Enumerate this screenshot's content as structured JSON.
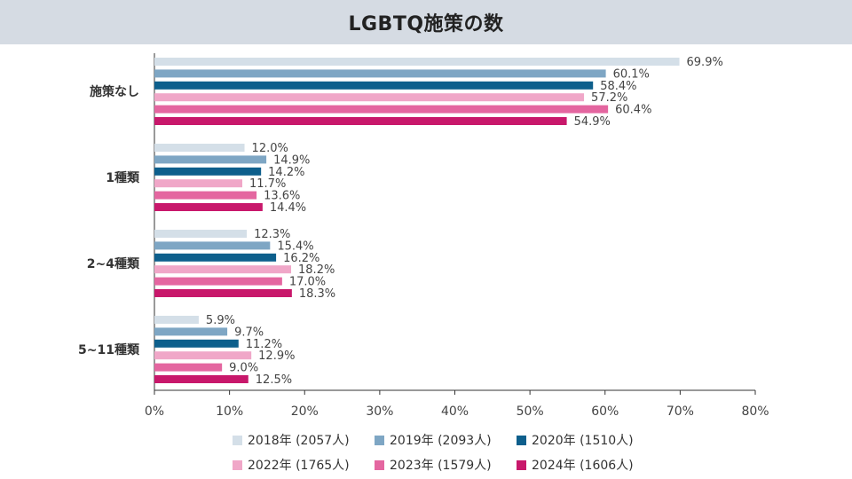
{
  "colors": {
    "2018": "#d4dfe8",
    "2019": "#7ea6c4",
    "2020": "#0d5f8c",
    "2022": "#f0a7c8",
    "2023": "#e466a0",
    "2024": "#c8186b"
  },
  "chart_data": {
    "type": "bar",
    "orientation": "horizontal",
    "title": "LGBTQ施策の数",
    "categories": [
      "施策なし",
      "1種類",
      "2~4種類",
      "5~11種類"
    ],
    "xlim": [
      0,
      80
    ],
    "xticks": [
      "0%",
      "10%",
      "20%",
      "30%",
      "40%",
      "50%",
      "60%",
      "70%",
      "80%"
    ],
    "series": [
      {
        "key": "2018",
        "name": "2018年 (2057人)",
        "values": [
          69.9,
          12.0,
          12.3,
          5.9
        ],
        "labels": [
          "69.9%",
          "12.0%",
          "12.3%",
          "5.9%"
        ]
      },
      {
        "key": "2019",
        "name": "2019年 (2093人)",
        "values": [
          60.1,
          14.9,
          15.4,
          9.7
        ],
        "labels": [
          "60.1%",
          "14.9%",
          "15.4%",
          "9.7%"
        ]
      },
      {
        "key": "2020",
        "name": "2020年 (1510人)",
        "values": [
          58.4,
          14.2,
          16.2,
          11.2
        ],
        "labels": [
          "58.4%",
          "14.2%",
          "16.2%",
          "11.2%"
        ]
      },
      {
        "key": "2022",
        "name": "2022年 (1765人)",
        "values": [
          57.2,
          11.7,
          18.2,
          12.9
        ],
        "labels": [
          "57.2%",
          "11.7%",
          "18.2%",
          "12.9%"
        ]
      },
      {
        "key": "2023",
        "name": "2023年 (1579人)",
        "values": [
          60.4,
          13.6,
          17.0,
          9.0
        ],
        "labels": [
          "60.4%",
          "13.6%",
          "17.0%",
          "9.0%"
        ]
      },
      {
        "key": "2024",
        "name": "2024年 (1606人)",
        "values": [
          54.9,
          14.4,
          18.3,
          12.5
        ],
        "labels": [
          "54.9%",
          "14.4%",
          "18.3%",
          "12.5%"
        ]
      }
    ]
  }
}
